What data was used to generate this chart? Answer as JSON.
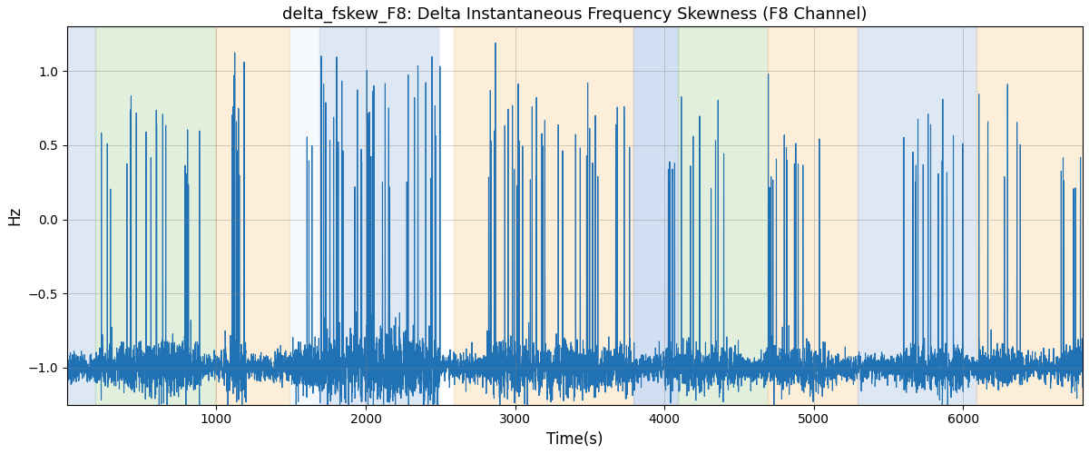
{
  "title": "delta_fskew_F8: Delta Instantaneous Frequency Skewness (F8 Channel)",
  "xlabel": "Time(s)",
  "ylabel": "Hz",
  "xlim": [
    0,
    6800
  ],
  "ylim": [
    -1.25,
    1.3
  ],
  "line_color": "#2171b5",
  "line_width": 0.8,
  "bg_bands": [
    {
      "xmin": 0,
      "xmax": 190,
      "color": "#aec6e8",
      "alpha": 0.4
    },
    {
      "xmin": 190,
      "xmax": 990,
      "color": "#b6d7a8",
      "alpha": 0.4
    },
    {
      "xmin": 990,
      "xmax": 1490,
      "color": "#fcd5a0",
      "alpha": 0.4
    },
    {
      "xmin": 1490,
      "xmax": 1690,
      "color": "#dce9f5",
      "alpha": 0.25
    },
    {
      "xmin": 1690,
      "xmax": 2490,
      "color": "#aec6e8",
      "alpha": 0.4
    },
    {
      "xmin": 2490,
      "xmax": 2590,
      "color": "#ffffff",
      "alpha": 0.5
    },
    {
      "xmin": 2590,
      "xmax": 3790,
      "color": "#fcd5a0",
      "alpha": 0.4
    },
    {
      "xmin": 3790,
      "xmax": 4090,
      "color": "#aec6e8",
      "alpha": 0.55
    },
    {
      "xmin": 4090,
      "xmax": 4690,
      "color": "#b6d7a8",
      "alpha": 0.4
    },
    {
      "xmin": 4690,
      "xmax": 5290,
      "color": "#fcd5a0",
      "alpha": 0.4
    },
    {
      "xmin": 5290,
      "xmax": 6090,
      "color": "#aec6e8",
      "alpha": 0.4
    },
    {
      "xmin": 6090,
      "xmax": 6800,
      "color": "#fcd5a0",
      "alpha": 0.4
    }
  ],
  "yticks": [
    -1.0,
    -0.5,
    0.0,
    0.5,
    1.0
  ],
  "xticks": [
    1000,
    2000,
    3000,
    4000,
    5000,
    6000
  ],
  "spike_regions": [
    {
      "start": 200,
      "end": 500,
      "density": 0.025,
      "max_height": 0.85,
      "baseline_noise": 0.08
    },
    {
      "start": 500,
      "end": 900,
      "density": 0.03,
      "max_height": 0.8,
      "baseline_noise": 0.1
    },
    {
      "start": 1050,
      "end": 1200,
      "density": 0.06,
      "max_height": 1.15,
      "baseline_noise": 0.1
    },
    {
      "start": 1500,
      "end": 1700,
      "density": 0.015,
      "max_height": 0.65,
      "baseline_noise": 0.1
    },
    {
      "start": 1700,
      "end": 2100,
      "density": 0.05,
      "max_height": 1.3,
      "baseline_noise": 0.12
    },
    {
      "start": 2100,
      "end": 2500,
      "density": 0.04,
      "max_height": 1.1,
      "baseline_noise": 0.12
    },
    {
      "start": 2800,
      "end": 3100,
      "density": 0.045,
      "max_height": 1.25,
      "baseline_noise": 0.1
    },
    {
      "start": 3100,
      "end": 3500,
      "density": 0.035,
      "max_height": 1.0,
      "baseline_noise": 0.1
    },
    {
      "start": 3500,
      "end": 3800,
      "density": 0.03,
      "max_height": 0.8,
      "baseline_noise": 0.08
    },
    {
      "start": 4000,
      "end": 4100,
      "density": 0.05,
      "max_height": 0.4,
      "baseline_noise": 0.08
    },
    {
      "start": 4100,
      "end": 4500,
      "density": 0.02,
      "max_height": 0.85,
      "baseline_noise": 0.08
    },
    {
      "start": 4680,
      "end": 4750,
      "density": 0.08,
      "max_height": 1.05,
      "baseline_noise": 0.08
    },
    {
      "start": 4750,
      "end": 5100,
      "density": 0.025,
      "max_height": 0.7,
      "baseline_noise": 0.08
    },
    {
      "start": 5600,
      "end": 5700,
      "density": 0.06,
      "max_height": 1.0,
      "baseline_noise": 0.08
    },
    {
      "start": 5700,
      "end": 6000,
      "density": 0.03,
      "max_height": 0.85,
      "baseline_noise": 0.08
    },
    {
      "start": 6100,
      "end": 6400,
      "density": 0.02,
      "max_height": 0.95,
      "baseline_noise": 0.08
    },
    {
      "start": 6650,
      "end": 6800,
      "density": 0.04,
      "max_height": 0.5,
      "baseline_noise": 0.08
    }
  ]
}
